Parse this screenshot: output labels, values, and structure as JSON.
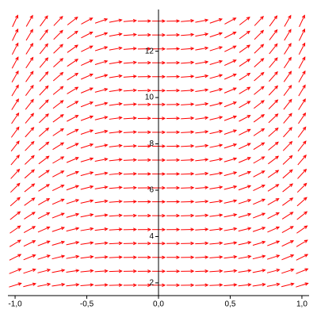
{
  "chart_data": {
    "type": "direction_field",
    "dydx": "x^2*y",
    "color": "#ff0000",
    "xlim": [
      -1.05,
      1.05
    ],
    "ylim": [
      1.45,
      13.8
    ],
    "xticks": [
      {
        "value": -1,
        "label": "-1,0"
      },
      {
        "value": -0.5,
        "label": "-0,5"
      },
      {
        "value": 0,
        "label": "0,0"
      },
      {
        "value": 0.5,
        "label": "0,5"
      },
      {
        "value": 1,
        "label": "1,0"
      }
    ],
    "yticks": [
      2,
      4,
      6,
      8,
      10,
      12
    ],
    "x_grid": [
      -1,
      -0.9,
      -0.8,
      -0.7,
      -0.6,
      -0.5,
      -0.4,
      -0.3,
      -0.2,
      -0.1,
      0,
      0.1,
      0.2,
      0.3,
      0.4,
      0.5,
      0.6,
      0.7,
      0.8,
      0.9,
      1
    ],
    "y_grid": [
      1.9,
      2.5,
      3.1,
      3.7,
      4.3,
      4.9,
      5.5,
      6.1,
      6.7,
      7.3,
      7.9,
      8.5,
      9.1,
      9.7,
      10.3,
      10.9,
      11.5,
      12.1,
      12.7,
      13.3
    ]
  }
}
